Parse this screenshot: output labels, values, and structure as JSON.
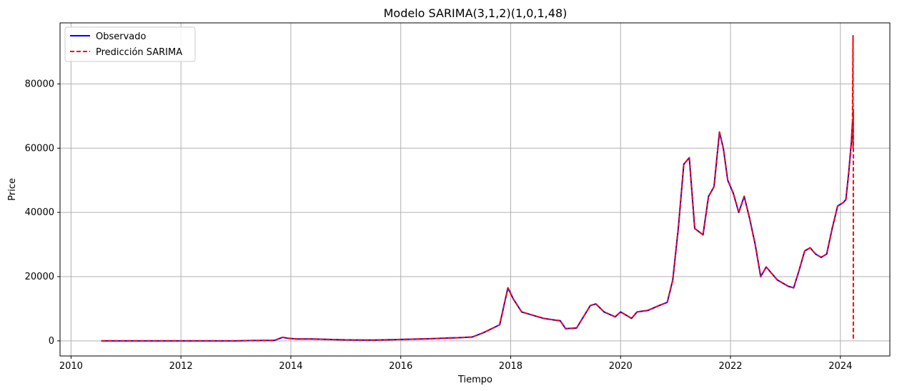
{
  "chart_data": {
    "type": "line",
    "title": "Modelo SARIMA(3,1,2)(1,0,1,48)",
    "xlabel": "Tiempo",
    "ylabel": "Price",
    "xlim": [
      2009.8,
      2024.9
    ],
    "ylim": [
      -4700,
      99000
    ],
    "x_ticks": [
      "2010",
      "2012",
      "2014",
      "2016",
      "2018",
      "2020",
      "2022",
      "2024"
    ],
    "y_ticks": [
      "0",
      "20000",
      "40000",
      "60000",
      "80000"
    ],
    "grid": true,
    "legend_position": "top-left",
    "series": [
      {
        "name": "Observado",
        "color": "#0000ff",
        "style": "solid",
        "x": [
          2010.55,
          2011.0,
          2011.5,
          2012.0,
          2012.5,
          2013.0,
          2013.3,
          2013.7,
          2013.85,
          2013.95,
          2014.1,
          2014.4,
          2014.8,
          2015.0,
          2015.5,
          2015.9,
          2016.0,
          2016.5,
          2016.9,
          2017.0,
          2017.3,
          2017.5,
          2017.8,
          2017.95,
          2018.05,
          2018.2,
          2018.4,
          2018.6,
          2018.8,
          2018.9,
          2019.0,
          2019.2,
          2019.45,
          2019.55,
          2019.7,
          2019.9,
          2020.0,
          2020.2,
          2020.3,
          2020.5,
          2020.7,
          2020.85,
          2020.95,
          2021.05,
          2021.15,
          2021.25,
          2021.35,
          2021.5,
          2021.6,
          2021.7,
          2021.8,
          2021.87,
          2021.95,
          2022.05,
          2022.15,
          2022.25,
          2022.35,
          2022.45,
          2022.55,
          2022.65,
          2022.75,
          2022.85,
          2022.95,
          2023.05,
          2023.15,
          2023.25,
          2023.35,
          2023.45,
          2023.55,
          2023.65,
          2023.75,
          2023.85,
          2023.95,
          2024.05,
          2024.1,
          2024.15,
          2024.2,
          2024.22
        ],
        "y": [
          0,
          0,
          0,
          0,
          0,
          0,
          100,
          150,
          1100,
          800,
          600,
          600,
          400,
          300,
          250,
          400,
          450,
          650,
          900,
          950,
          1200,
          2500,
          5000,
          16500,
          13000,
          9000,
          8000,
          7000,
          6500,
          6300,
          3800,
          4000,
          11000,
          11500,
          9000,
          7500,
          9000,
          7000,
          9000,
          9500,
          11000,
          12000,
          19000,
          35000,
          55000,
          57000,
          35000,
          33000,
          45000,
          48000,
          65000,
          60000,
          50000,
          46000,
          40000,
          45000,
          38000,
          30000,
          20000,
          23000,
          21000,
          19000,
          18000,
          17000,
          16500,
          22000,
          28000,
          29000,
          27000,
          26000,
          27000,
          35000,
          42000,
          43000,
          44000,
          52000,
          62000,
          68000
        ]
      },
      {
        "name": "Predicción SARIMA",
        "color": "#ff0000",
        "style": "dashed",
        "x": [
          2010.55,
          2011.0,
          2011.5,
          2012.0,
          2012.5,
          2013.0,
          2013.3,
          2013.7,
          2013.85,
          2013.95,
          2014.1,
          2014.4,
          2014.8,
          2015.0,
          2015.5,
          2015.9,
          2016.0,
          2016.5,
          2016.9,
          2017.0,
          2017.3,
          2017.5,
          2017.8,
          2017.95,
          2018.05,
          2018.2,
          2018.4,
          2018.6,
          2018.8,
          2018.9,
          2019.0,
          2019.2,
          2019.45,
          2019.55,
          2019.7,
          2019.9,
          2020.0,
          2020.2,
          2020.3,
          2020.5,
          2020.7,
          2020.85,
          2020.95,
          2021.05,
          2021.15,
          2021.25,
          2021.35,
          2021.5,
          2021.6,
          2021.7,
          2021.8,
          2021.87,
          2021.95,
          2022.05,
          2022.15,
          2022.25,
          2022.35,
          2022.45,
          2022.55,
          2022.65,
          2022.75,
          2022.85,
          2022.95,
          2023.05,
          2023.15,
          2023.25,
          2023.35,
          2023.45,
          2023.55,
          2023.65,
          2023.75,
          2023.85,
          2023.95,
          2024.05,
          2024.1,
          2024.15,
          2024.2,
          2024.22,
          2024.23,
          2024.23,
          2024.235,
          2024.235
        ],
        "y": [
          0,
          0,
          0,
          0,
          0,
          0,
          100,
          150,
          1100,
          800,
          600,
          600,
          400,
          300,
          250,
          400,
          450,
          650,
          900,
          950,
          1200,
          2500,
          5000,
          16500,
          13000,
          9000,
          8000,
          7000,
          6500,
          6300,
          3800,
          4000,
          11000,
          11500,
          9000,
          7500,
          9000,
          7000,
          9000,
          9500,
          11000,
          12000,
          19000,
          35000,
          55000,
          57000,
          35000,
          33000,
          45000,
          48000,
          65000,
          60000,
          50000,
          46000,
          40000,
          45000,
          38000,
          30000,
          20000,
          23000,
          21000,
          19000,
          18000,
          17000,
          16500,
          22000,
          28000,
          29000,
          27000,
          26000,
          27000,
          35000,
          42000,
          43000,
          44000,
          52000,
          62000,
          68000,
          95000,
          60000,
          72000,
          0
        ]
      }
    ]
  }
}
